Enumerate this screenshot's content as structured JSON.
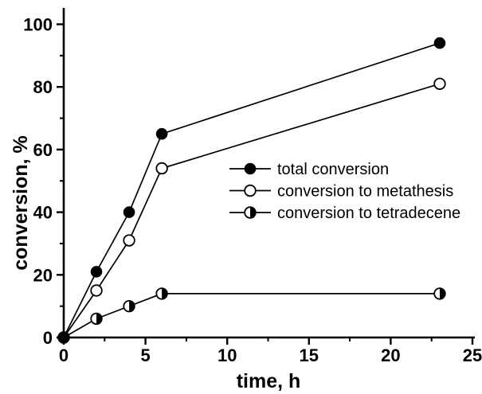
{
  "figure": {
    "background": "#ffffff",
    "foreground": "#000000"
  },
  "chart_data": {
    "type": "line",
    "title": "",
    "xlabel": "time, h",
    "ylabel": "conversion, %",
    "xlim": [
      0,
      25
    ],
    "ylim": [
      0,
      105
    ],
    "xticks": [
      0,
      5,
      10,
      15,
      20,
      25
    ],
    "yticks": [
      0,
      20,
      40,
      60,
      80,
      100
    ],
    "x_minor_tick_step": 2.5,
    "y_minor_tick_step": 10,
    "grid": false,
    "legend_position": "center-right",
    "legend_border": false,
    "x": [
      0,
      2,
      4,
      6,
      23
    ],
    "series": [
      {
        "name": "total conversion",
        "marker": "filled-circle",
        "values": [
          0,
          21,
          40,
          65,
          94
        ]
      },
      {
        "name": "conversion to metathesis",
        "marker": "open-circle",
        "values": [
          0,
          15,
          31,
          54,
          81
        ]
      },
      {
        "name": "conversion to tetradecene",
        "marker": "half-filled-circle",
        "values": [
          0,
          6,
          10,
          14,
          14
        ]
      }
    ],
    "colors": {
      "line": "#000000",
      "marker_fill": "#000000",
      "marker_open_fill": "#ffffff",
      "background": "#ffffff"
    }
  }
}
